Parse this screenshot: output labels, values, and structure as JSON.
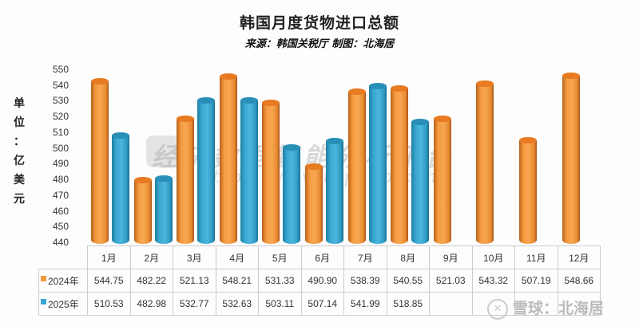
{
  "chart_data": {
    "type": "bar",
    "title": "韩国月度货物进口总额",
    "subtitle": "来源：韩国关税厅 制图：北海居",
    "xlabel": "",
    "ylabel": "单位：亿美元",
    "ylim": [
      440,
      550
    ],
    "yticks": [
      550,
      540,
      530,
      520,
      510,
      500,
      490,
      480,
      470,
      460,
      450,
      440
    ],
    "categories": [
      "1月",
      "2月",
      "3月",
      "4月",
      "5月",
      "6月",
      "7月",
      "8月",
      "9月",
      "10月",
      "11月",
      "12月"
    ],
    "series": [
      {
        "name": "2024年",
        "color": "#f59a40",
        "values": [
          544.75,
          482.22,
          521.13,
          548.21,
          531.33,
          490.9,
          538.39,
          540.55,
          521.03,
          543.32,
          507.19,
          548.66
        ]
      },
      {
        "name": "2025年",
        "color": "#38a8d2",
        "values": [
          510.53,
          482.98,
          532.77,
          532.63,
          503.11,
          507.14,
          541.99,
          518.85,
          null,
          null,
          null,
          null
        ]
      }
    ],
    "legend_position": "data-table",
    "grid": false
  },
  "header": {
    "title": "韩国月度货物进口总额",
    "subtitle": "来源：韩国关税厅 制图：北海居"
  },
  "axis": {
    "ylabel_chars": [
      "单",
      "位",
      "：",
      "亿",
      "美",
      "元"
    ]
  },
  "table": {
    "row_labels": [
      "2024年",
      "2025年"
    ],
    "rows": [
      [
        "544.75",
        "482.22",
        "521.13",
        "548.21",
        "531.33",
        "490.90",
        "538.39",
        "540.55",
        "521.03",
        "543.32",
        "507.19",
        "548.66"
      ],
      [
        "510.53",
        "482.98",
        "532.77",
        "532.63",
        "503.11",
        "507.14",
        "541.99",
        "518.85",
        "",
        "",
        "",
        ""
      ]
    ]
  },
  "watermark": {
    "line1": "经济数据智能分析平台",
    "line2": "https: www.topedb.com"
  },
  "footer": {
    "text": "雪球：北海居"
  }
}
